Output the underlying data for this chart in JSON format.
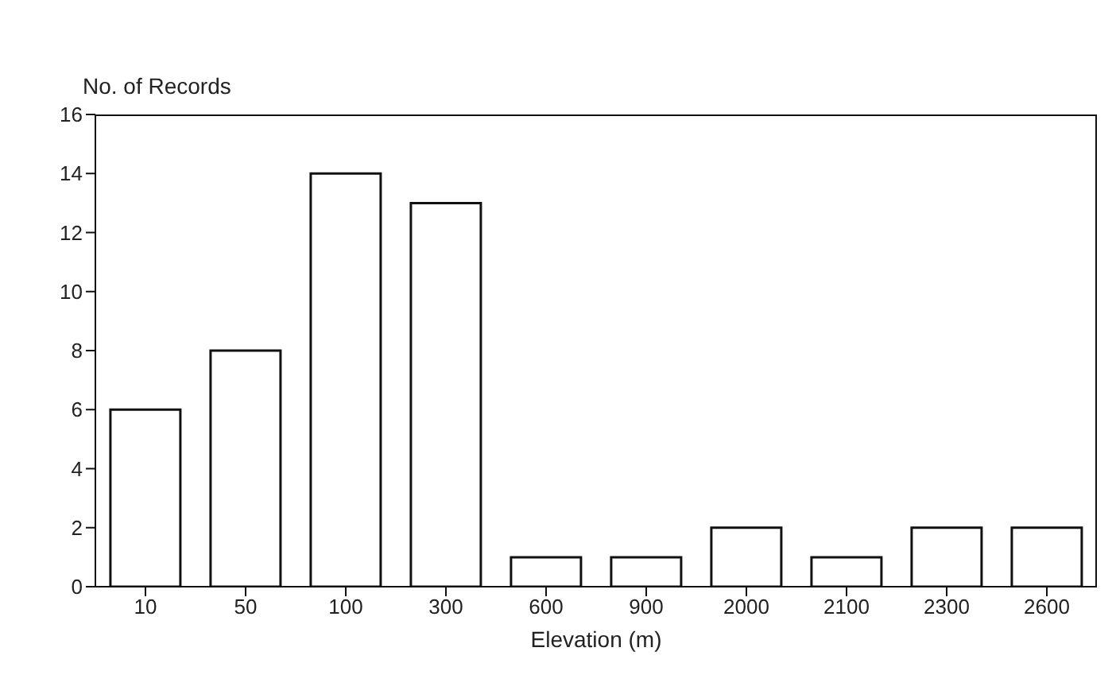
{
  "chart_data": {
    "type": "bar",
    "ylabel": "No. of Records",
    "xlabel": "Elevation (m)",
    "categories": [
      "10",
      "50",
      "100",
      "300",
      "600",
      "900",
      "2000",
      "2100",
      "2300",
      "2600"
    ],
    "values": [
      6,
      8,
      14,
      13,
      1,
      1,
      2,
      1,
      2,
      2
    ],
    "color": "#ffffff",
    "ylim": [
      0,
      16
    ],
    "yticks": [
      0,
      2,
      4,
      6,
      8,
      10,
      12,
      14,
      16
    ],
    "grid": false
  }
}
